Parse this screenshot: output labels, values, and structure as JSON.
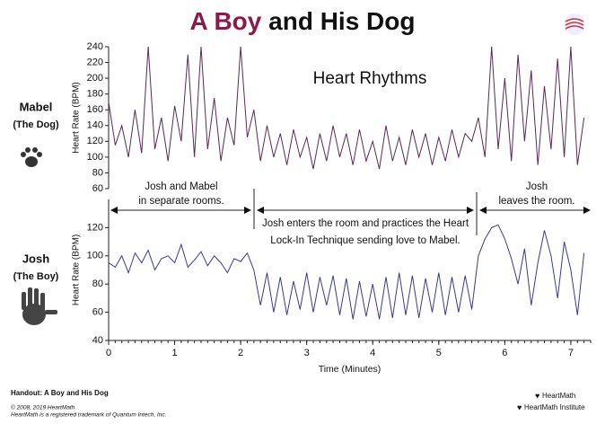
{
  "header": {
    "title_highlight": "A Boy",
    "title_rest": "and His Dog"
  },
  "chart_data": [
    {
      "type": "line",
      "subtitle": "Heart Rhythms",
      "ylabel": "Heart Rate (BPM)",
      "xlim": [
        0,
        7.3
      ],
      "ylim": [
        60,
        240
      ],
      "yticks": [
        60,
        80,
        100,
        120,
        140,
        160,
        180,
        200,
        220,
        240
      ],
      "x": [
        0,
        0.1,
        0.2,
        0.3,
        0.4,
        0.5,
        0.6,
        0.7,
        0.8,
        0.9,
        1,
        1.1,
        1.2,
        1.3,
        1.4,
        1.5,
        1.6,
        1.7,
        1.8,
        1.9,
        2,
        2.1,
        2.2,
        2.3,
        2.4,
        2.5,
        2.6,
        2.7,
        2.8,
        2.9,
        3,
        3.1,
        3.2,
        3.3,
        3.4,
        3.5,
        3.6,
        3.7,
        3.8,
        3.9,
        4,
        4.1,
        4.2,
        4.3,
        4.4,
        4.5,
        4.6,
        4.7,
        4.8,
        4.9,
        5,
        5.1,
        5.2,
        5.3,
        5.4,
        5.5,
        5.6,
        5.7,
        5.8,
        5.9,
        6,
        6.1,
        6.2,
        6.3,
        6.4,
        6.5,
        6.6,
        6.7,
        6.8,
        6.9,
        7,
        7.1,
        7.2
      ],
      "series": [
        {
          "name": "Mabel",
          "note": "(The Dog)",
          "color": "#5a2a55",
          "values": [
            170,
            115,
            140,
            100,
            160,
            105,
            240,
            110,
            150,
            95,
            165,
            120,
            230,
            100,
            240,
            110,
            175,
            95,
            150,
            115,
            240,
            125,
            160,
            95,
            140,
            100,
            130,
            90,
            135,
            100,
            125,
            85,
            130,
            95,
            140,
            100,
            130,
            90,
            135,
            95,
            120,
            85,
            140,
            95,
            125,
            90,
            135,
            100,
            130,
            90,
            125,
            95,
            135,
            100,
            130,
            120,
            150,
            100,
            240,
            110,
            200,
            95,
            230,
            120,
            210,
            90,
            190,
            110,
            225,
            100,
            240,
            90,
            150
          ]
        }
      ]
    },
    {
      "type": "line",
      "ylabel": "Heart Rate (BPM)",
      "xlabel": "Time (Minutes)",
      "xlim": [
        0,
        7.3
      ],
      "xticks": [
        0,
        1,
        2,
        3,
        4,
        5,
        6,
        7
      ],
      "ylim": [
        40,
        140
      ],
      "yticks": [
        40,
        60,
        80,
        100,
        120
      ],
      "x": [
        0,
        0.1,
        0.2,
        0.3,
        0.4,
        0.5,
        0.6,
        0.7,
        0.8,
        0.9,
        1,
        1.1,
        1.2,
        1.3,
        1.4,
        1.5,
        1.6,
        1.7,
        1.8,
        1.9,
        2,
        2.1,
        2.2,
        2.3,
        2.4,
        2.5,
        2.6,
        2.7,
        2.8,
        2.9,
        3,
        3.1,
        3.2,
        3.3,
        3.4,
        3.5,
        3.6,
        3.7,
        3.8,
        3.9,
        4,
        4.1,
        4.2,
        4.3,
        4.4,
        4.5,
        4.6,
        4.7,
        4.8,
        4.9,
        5,
        5.1,
        5.2,
        5.3,
        5.4,
        5.5,
        5.6,
        5.7,
        5.8,
        5.9,
        6,
        6.1,
        6.2,
        6.3,
        6.4,
        6.5,
        6.6,
        6.7,
        6.8,
        6.9,
        7,
        7.1,
        7.2
      ],
      "series": [
        {
          "name": "Josh",
          "note": "(The Boy)",
          "color": "#3b3a8a",
          "values": [
            95,
            92,
            100,
            88,
            102,
            95,
            104,
            90,
            98,
            100,
            95,
            108,
            92,
            97,
            103,
            93,
            100,
            95,
            88,
            98,
            96,
            102,
            90,
            65,
            88,
            60,
            85,
            58,
            82,
            62,
            88,
            60,
            85,
            65,
            86,
            58,
            84,
            55,
            82,
            57,
            80,
            55,
            85,
            56,
            88,
            58,
            86,
            56,
            84,
            60,
            88,
            58,
            85,
            60,
            86,
            62,
            100,
            112,
            120,
            122,
            112,
            98,
            80,
            105,
            65,
            95,
            118,
            100,
            70,
            110,
            90,
            58,
            102
          ]
        }
      ]
    }
  ],
  "annotations": {
    "separate": [
      "Josh and Mabel",
      "in separate rooms."
    ],
    "enters": [
      "Josh enters the room and practices the Heart",
      "Lock-In Technique sending love to Mabel."
    ],
    "leaves": [
      "Josh",
      "leaves the room."
    ]
  },
  "footer": {
    "handout": "Handout: A Boy and His Dog",
    "copyright": "© 2008, 2019 HeartMath",
    "trademark": "HeartMath is a registered trademark of Quantum Intech, Inc.",
    "logo1": "HeartMath",
    "logo2": "HeartMath Institute"
  }
}
